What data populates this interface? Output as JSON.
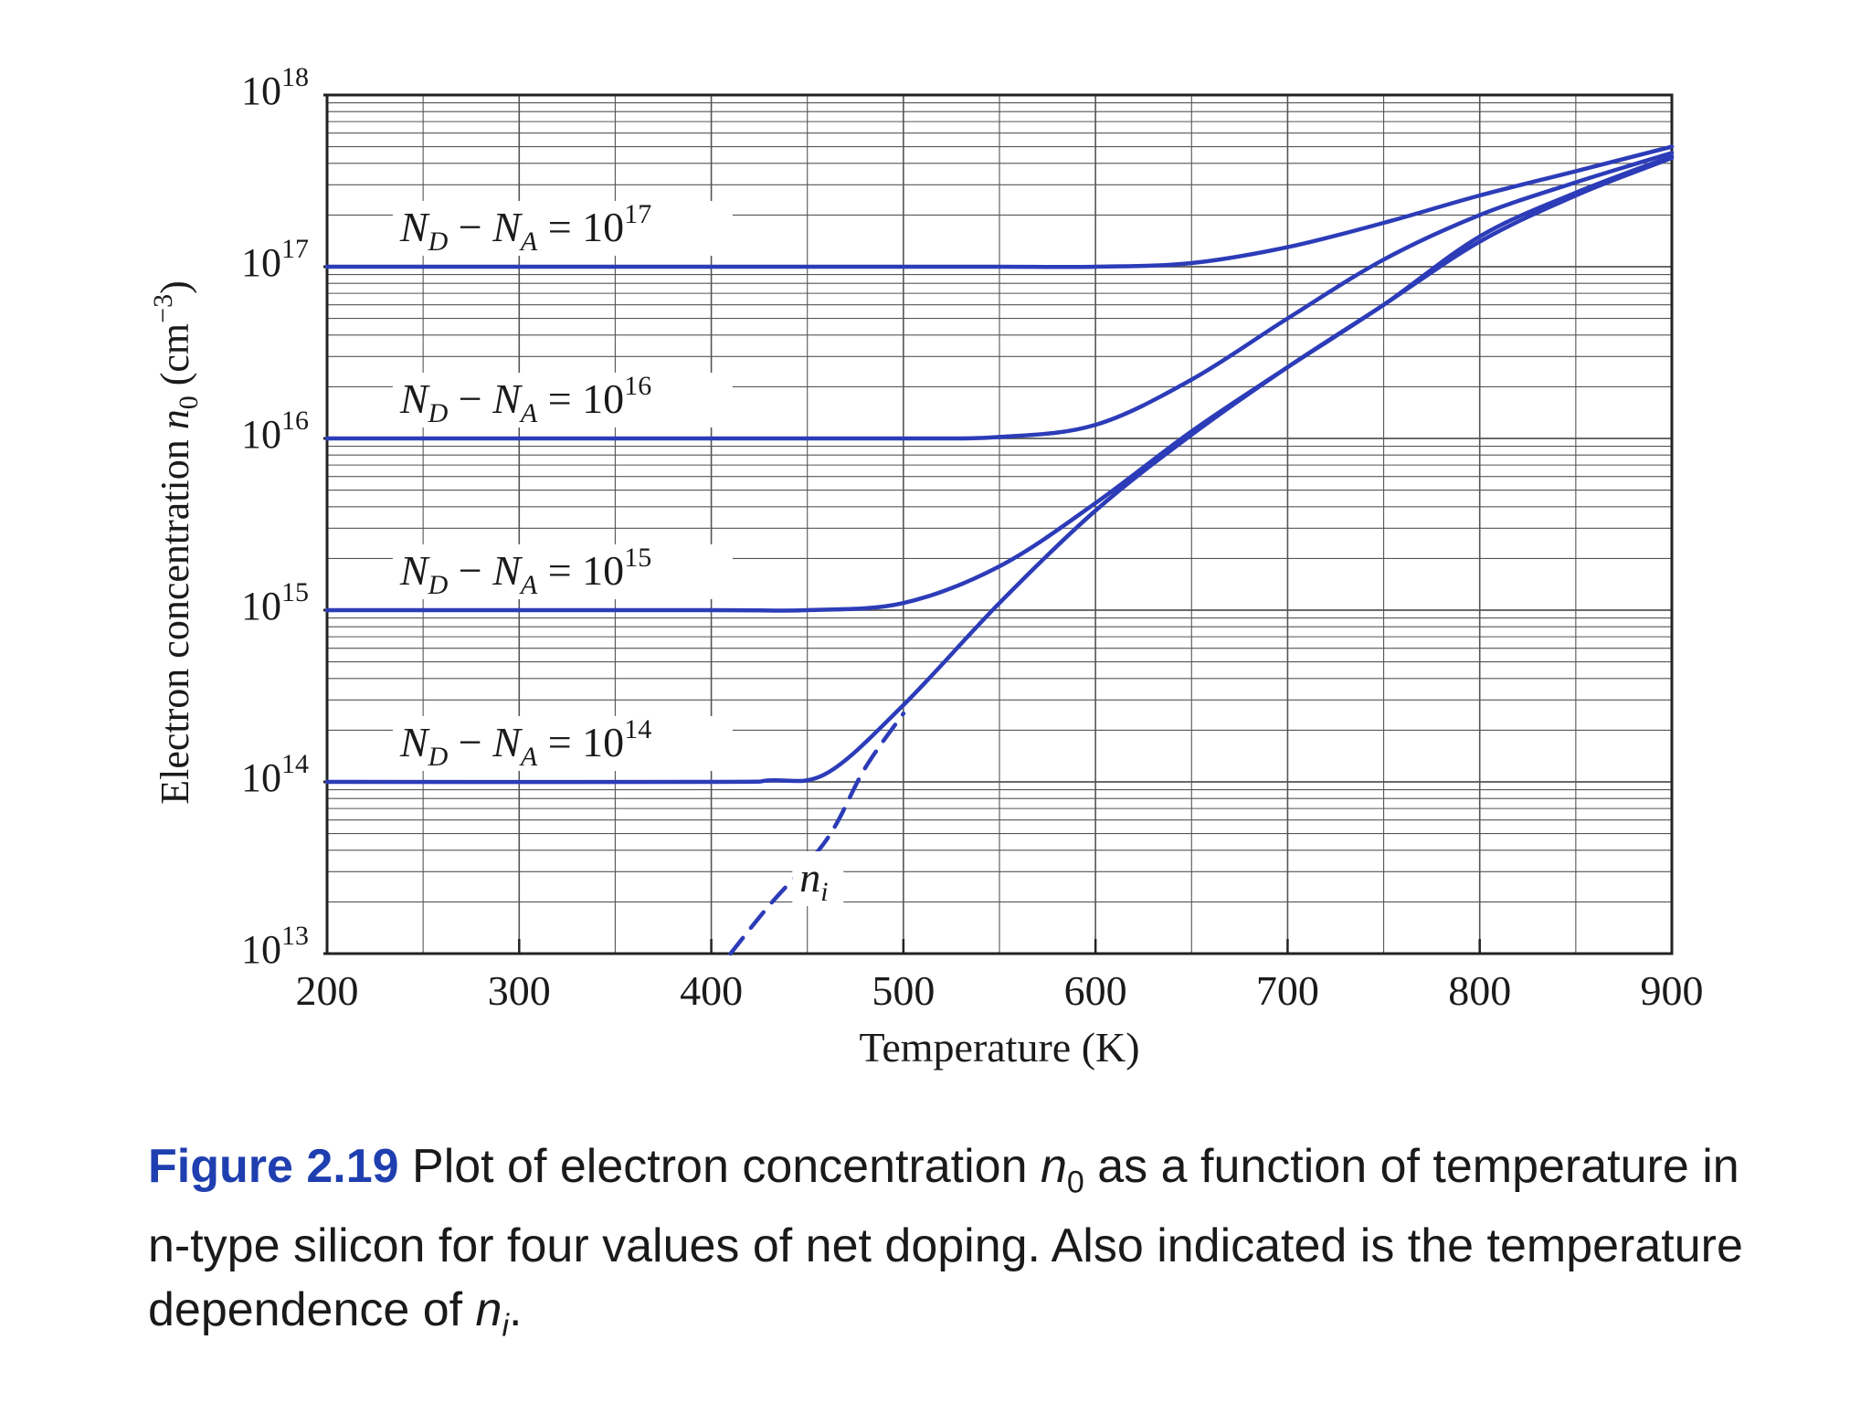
{
  "colors": {
    "curve": "#2c3cb8",
    "grid": "#555555",
    "text": "#1a1a1a",
    "caption_label": "#1f3fb0"
  },
  "chart_data": {
    "type": "line",
    "xlabel": "Temperature (K)",
    "ylabel": "Electron concentration n0 (cm^-3)",
    "ylabel_parts": {
      "main": "Electron concentration ",
      "var": "n",
      "sub": "0",
      "unit_open": " (cm",
      "exp": "−3",
      "unit_close": ")"
    },
    "xlim": [
      200,
      900
    ],
    "ylim": [
      10000000000000.0,
      1e+18
    ],
    "yscale": "log",
    "grid": true,
    "x_ticks": [
      "200",
      "300",
      "400",
      "500",
      "600",
      "700",
      "800",
      "900"
    ],
    "x_tick_values": [
      200,
      300,
      400,
      500,
      600,
      700,
      800,
      900
    ],
    "y_ticks": [
      {
        "base": "10",
        "exp": "13",
        "value": 10000000000000.0
      },
      {
        "base": "10",
        "exp": "14",
        "value": 100000000000000.0
      },
      {
        "base": "10",
        "exp": "15",
        "value": 1000000000000000.0
      },
      {
        "base": "10",
        "exp": "16",
        "value": 1e+16
      },
      {
        "base": "10",
        "exp": "17",
        "value": 1e+17
      },
      {
        "base": "10",
        "exp": "18",
        "value": 1e+18
      }
    ],
    "series": [
      {
        "name": "N_D − N_A = 10^17",
        "label_parts": {
          "a": "N",
          "a_sub": "D",
          "minus": " − ",
          "b": "N",
          "b_sub": "A",
          "eq": " = 10",
          "exp": "17"
        },
        "style": "solid",
        "x": [
          200,
          400,
          500,
          550,
          600,
          650,
          700,
          750,
          800,
          850,
          900
        ],
        "y": [
          1e+17,
          1e+17,
          1e+17,
          1e+17,
          1e+17,
          1.05e+17,
          1.3e+17,
          1.8e+17,
          2.6e+17,
          3.6e+17,
          5e+17
        ]
      },
      {
        "name": "N_D − N_A = 10^16",
        "label_parts": {
          "a": "N",
          "a_sub": "D",
          "minus": " − ",
          "b": "N",
          "b_sub": "A",
          "eq": " = 10",
          "exp": "16"
        },
        "style": "solid",
        "x": [
          200,
          400,
          500,
          550,
          600,
          650,
          700,
          750,
          800,
          850,
          900
        ],
        "y": [
          1e+16,
          1e+16,
          1e+16,
          1.02e+16,
          1.2e+16,
          2.2e+16,
          5e+16,
          1.1e+17,
          2e+17,
          3.1e+17,
          4.6e+17
        ]
      },
      {
        "name": "N_D − N_A = 10^15",
        "label_parts": {
          "a": "N",
          "a_sub": "D",
          "minus": " − ",
          "b": "N",
          "b_sub": "A",
          "eq": " = 10",
          "exp": "15"
        },
        "style": "solid",
        "x": [
          200,
          400,
          450,
          500,
          550,
          600,
          650,
          700,
          750,
          800,
          850,
          900
        ],
        "y": [
          1000000000000000.0,
          1000000000000000.0,
          1000000000000000.0,
          1100000000000000.0,
          1800000000000000.0,
          4200000000000000.0,
          1.1e+16,
          2.6e+16,
          6e+16,
          1.5e+17,
          2.7e+17,
          4.4e+17
        ]
      },
      {
        "name": "N_D − N_A = 10^14",
        "label_parts": {
          "a": "N",
          "a_sub": "D",
          "minus": " − ",
          "b": "N",
          "b_sub": "A",
          "eq": " = 10",
          "exp": "14"
        },
        "style": "solid",
        "x": [
          200,
          400,
          430,
          460,
          500,
          550,
          600,
          650,
          700,
          750,
          800,
          850,
          900
        ],
        "y": [
          100000000000000.0,
          100000000000000.0,
          102000000000000.0,
          112000000000000.0,
          280000000000000.0,
          1100000000000000.0,
          3800000000000000.0,
          1.05e+16,
          2.6e+16,
          6e+16,
          1.4e+17,
          2.6e+17,
          4.3e+17
        ]
      },
      {
        "name": "n_i",
        "label_parts": {
          "a": "n",
          "a_sub": "i"
        },
        "style": "dashed",
        "x": [
          410,
          430,
          460,
          480,
          500
        ],
        "y": [
          10000000000000.0,
          19000000000000.0,
          46000000000000.0,
          120000000000000.0,
          250000000000000.0
        ]
      }
    ]
  },
  "caption": {
    "label": "Figure 2.19",
    "text_1": " Plot of electron concentration ",
    "var": "n",
    "var_sub": "0",
    "text_2": " as a function of temperature in n-type silicon for four values of net doping. Also indicated is the temperature dependence of ",
    "var2": "n",
    "var2_sub": "i",
    "text_3": "."
  }
}
